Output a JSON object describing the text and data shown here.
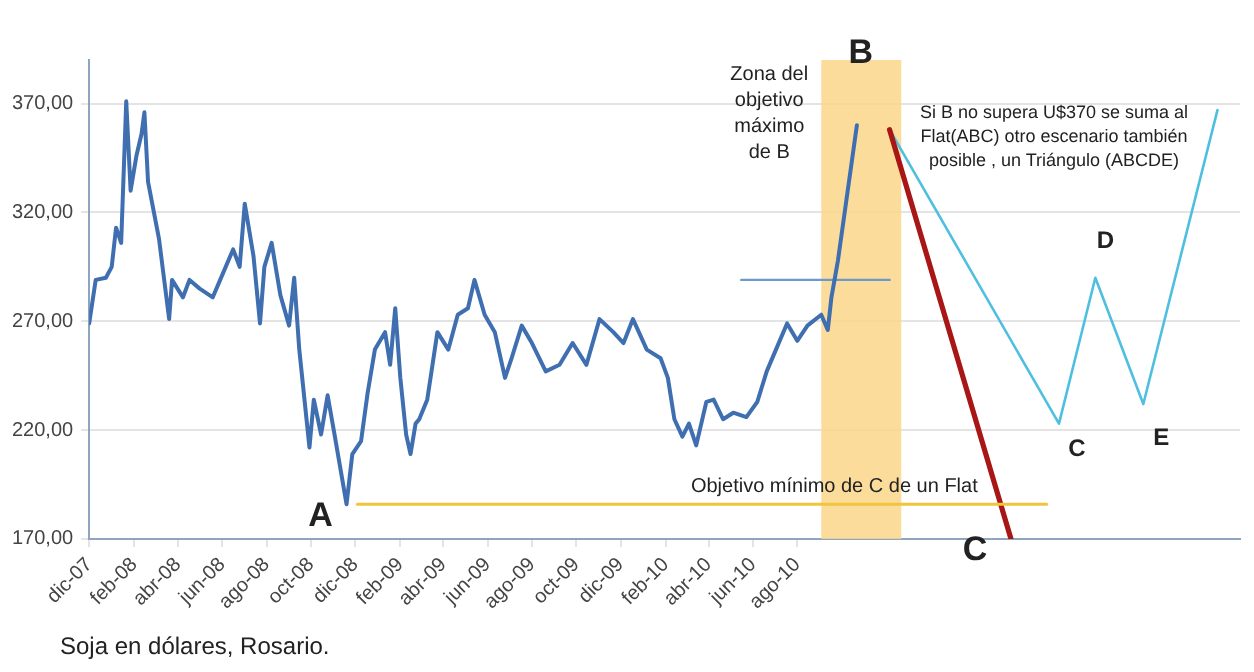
{
  "chart_data": {
    "type": "line",
    "legend": false,
    "grid": "y",
    "marker": "none",
    "xlim": [
      "2007-12-01",
      "2012-04-01"
    ],
    "xticks": [
      {
        "value": "2007-12-01",
        "label": "dic-07"
      },
      {
        "value": "2008-02-01",
        "label": "feb-08"
      },
      {
        "value": "2008-04-01",
        "label": "abr-08"
      },
      {
        "value": "2008-06-01",
        "label": "jun-08"
      },
      {
        "value": "2008-08-01",
        "label": "ago-08"
      },
      {
        "value": "2008-10-01",
        "label": "oct-08"
      },
      {
        "value": "2008-12-01",
        "label": "dic-08"
      },
      {
        "value": "2009-02-01",
        "label": "feb-09"
      },
      {
        "value": "2009-04-01",
        "label": "abr-09"
      },
      {
        "value": "2009-06-01",
        "label": "jun-09"
      },
      {
        "value": "2009-08-01",
        "label": "ago-09"
      },
      {
        "value": "2009-10-01",
        "label": "oct-09"
      },
      {
        "value": "2009-12-01",
        "label": "dic-09"
      },
      {
        "value": "2010-02-01",
        "label": "feb-10"
      },
      {
        "value": "2010-04-01",
        "label": "abr-10"
      },
      {
        "value": "2010-06-01",
        "label": "jun-10"
      },
      {
        "value": "2010-08-01",
        "label": "ago-10"
      }
    ],
    "ylim": [
      170,
      390
    ],
    "yticks": [
      {
        "value": 170,
        "label": "170,00"
      },
      {
        "value": 220,
        "label": "220,00"
      },
      {
        "value": 270,
        "label": "270,00"
      },
      {
        "value": 320,
        "label": "320,00"
      },
      {
        "value": 370,
        "label": "370,00"
      }
    ],
    "bands": [
      {
        "axis": "x",
        "from": "2010-09-03",
        "to": "2010-12-22",
        "label": "Zona del objetivo máximo de B",
        "color": "#fcd68a"
      }
    ],
    "series": [
      {
        "color": "#3f6fb0",
        "x": [
          "2007-12-01",
          "2007-12-10",
          "2007-12-24",
          "2008-01-01",
          "2008-01-07",
          "2008-01-14",
          "2008-01-21",
          "2008-01-27",
          "2008-02-04",
          "2008-02-11",
          "2008-02-15",
          "2008-02-20",
          "2008-03-06",
          "2008-03-20",
          "2008-03-24",
          "2008-04-08",
          "2008-04-17",
          "2008-05-01",
          "2008-05-19",
          "2008-06-02",
          "2008-06-16",
          "2008-06-25",
          "2008-07-02",
          "2008-07-14",
          "2008-07-23",
          "2008-07-29",
          "2008-08-08",
          "2008-08-20",
          "2008-09-01",
          "2008-09-08",
          "2008-09-15",
          "2008-09-29",
          "2008-10-05",
          "2008-10-15",
          "2008-10-24",
          "2008-11-03",
          "2008-11-19",
          "2008-11-27",
          "2008-12-09",
          "2008-12-18",
          "2008-12-28",
          "2009-01-11",
          "2009-01-18",
          "2009-01-25",
          "2009-02-01",
          "2009-02-09",
          "2009-02-15",
          "2009-02-22",
          "2009-02-27",
          "2009-03-10",
          "2009-03-15",
          "2009-03-24",
          "2009-04-08",
          "2009-04-21",
          "2009-05-05",
          "2009-05-14",
          "2009-05-28",
          "2009-06-11",
          "2009-06-25",
          "2009-07-04",
          "2009-07-18",
          "2009-08-01",
          "2009-08-20",
          "2009-09-08",
          "2009-09-26",
          "2009-10-15",
          "2009-11-02",
          "2009-11-21",
          "2009-12-05",
          "2009-12-18",
          "2010-01-06",
          "2010-01-25",
          "2010-02-04",
          "2010-02-13",
          "2010-02-24",
          "2010-03-05",
          "2010-03-15",
          "2010-03-29",
          "2010-04-08",
          "2010-04-21",
          "2010-05-05",
          "2010-05-23",
          "2010-06-07",
          "2010-06-20",
          "2010-07-04",
          "2010-07-18",
          "2010-08-01",
          "2010-08-15",
          "2010-09-03",
          "2010-09-12",
          "2010-09-17",
          "2010-09-26",
          "2010-10-22"
        ],
        "values": [
          269,
          289,
          290,
          295,
          313,
          306,
          371,
          330,
          346,
          356,
          366,
          334,
          308,
          271,
          289,
          281,
          289,
          285,
          281,
          292,
          303,
          295,
          324,
          300,
          269,
          295,
          306,
          282,
          268,
          290,
          257,
          212,
          234,
          218,
          236,
          217,
          186,
          209,
          215,
          237,
          257,
          265,
          250,
          276,
          244,
          218,
          209,
          223,
          225,
          234,
          245,
          265,
          257,
          273,
          276,
          289,
          273,
          265,
          244,
          253,
          268,
          260,
          247,
          250,
          260,
          250,
          271,
          265,
          260,
          271,
          257,
          253,
          244,
          225,
          217,
          223,
          213,
          233,
          234,
          225,
          228,
          226,
          233,
          247,
          258,
          269,
          261,
          268,
          273,
          266,
          281,
          298,
          360
        ]
      },
      {
        "color": "#6a9bc9",
        "x": [
          "2010-05-16",
          "2010-12-06"
        ],
        "values": [
          289,
          289
        ]
      },
      {
        "color": "#f2c43c",
        "x": [
          "2008-12-04",
          "2011-07-10"
        ],
        "values": [
          186,
          186
        ]
      },
      {
        "color": "#a81616",
        "x": [
          "2010-12-06",
          "2011-05-22"
        ],
        "values": [
          358,
          170
        ]
      },
      {
        "color": "#4fbfe0",
        "x": [
          "2010-12-06",
          "2011-07-27",
          "2011-09-15",
          "2011-11-20",
          "2012-03-01"
        ],
        "values": [
          358,
          223,
          290,
          232,
          367
        ]
      }
    ],
    "annotations": [
      {
        "text": "A",
        "x": "2008-11-19",
        "y": 186
      },
      {
        "text": "B",
        "x": "2010-10-22",
        "y": 360
      },
      {
        "text": "C",
        "x": "2011-05-22",
        "y": 170
      },
      {
        "text": "C",
        "x": "2011-07-27",
        "y": 223
      },
      {
        "text": "D",
        "x": "2011-09-15",
        "y": 290
      },
      {
        "text": "E",
        "x": "2011-11-20",
        "y": 232
      },
      {
        "text": "Objetivo mínimo de C de un Flat",
        "x": "2010-09-21",
        "y": 186
      },
      "Si B no supera U$370 se suma al Flat(ABC) otro escenario también posible , un Triángulo (ABCDE)",
      "Soja en dólares, Rosario."
    ]
  }
}
